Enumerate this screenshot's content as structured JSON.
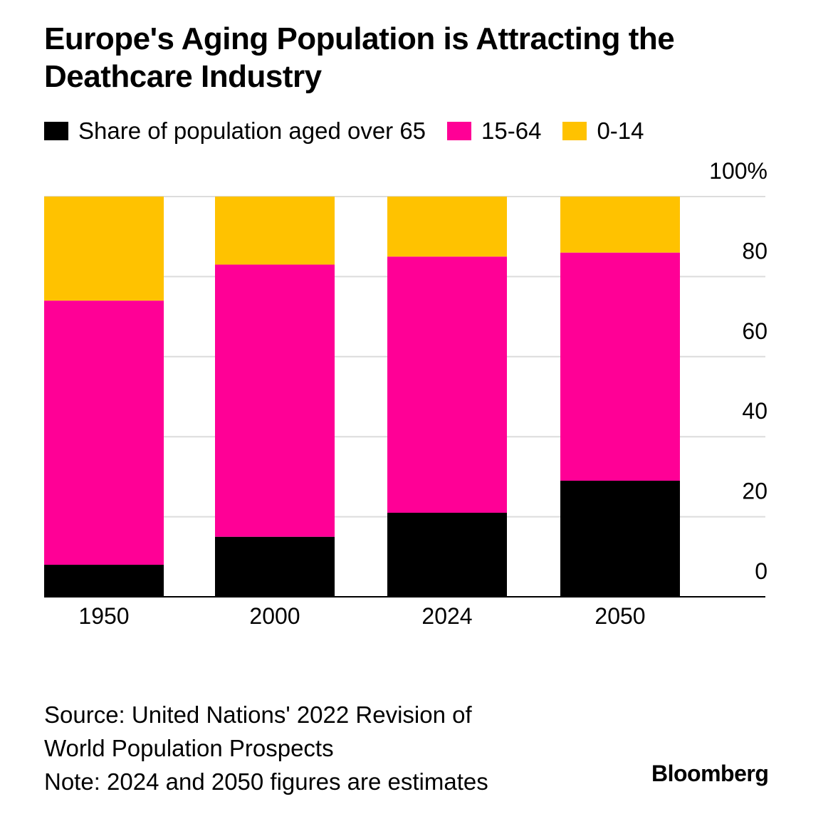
{
  "chart_data": {
    "type": "bar",
    "stacked": true,
    "title": "Europe's Aging Population is Attracting the Deathcare Industry",
    "categories": [
      "1950",
      "2000",
      "2024",
      "2050"
    ],
    "series": [
      {
        "name": "Share of population aged over 65",
        "color": "#000000",
        "values": [
          8,
          15,
          21,
          29
        ]
      },
      {
        "name": "15-64",
        "color": "#FF0096",
        "values": [
          66,
          68,
          64,
          57
        ]
      },
      {
        "name": "0-14",
        "color": "#FFC200",
        "values": [
          26,
          17,
          15,
          14
        ]
      }
    ],
    "ylim": [
      0,
      100
    ],
    "yticks": [
      0,
      20,
      40,
      60,
      80,
      100
    ],
    "ytick_labels": [
      "0",
      "20",
      "40",
      "60",
      "80",
      "100%"
    ],
    "xlabel": "",
    "ylabel": "",
    "grid": true,
    "legend_position": "top-left"
  },
  "source": [
    "Source: United Nations' 2022 Revision of",
    "World Population Prospects",
    "Note: 2024 and 2050 figures are estimates"
  ],
  "logo": "Bloomberg"
}
